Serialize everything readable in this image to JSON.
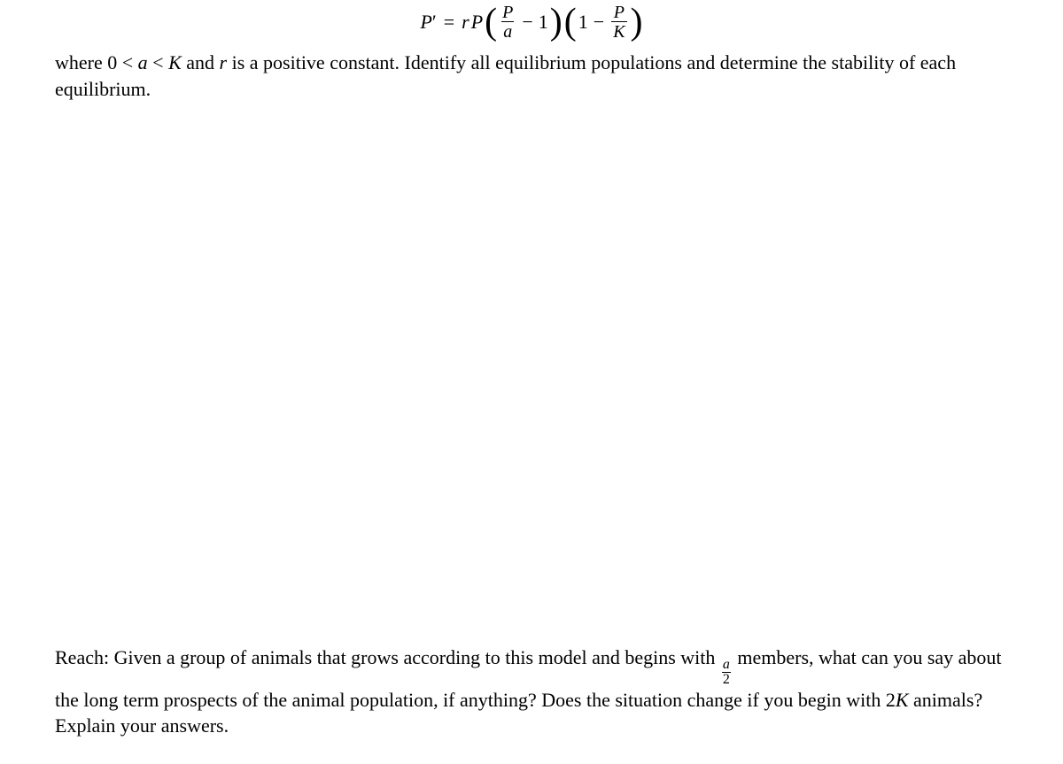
{
  "equation": {
    "var_P": "P",
    "prime": "′",
    "equals": "=",
    "var_r": "r",
    "var_P2": "P",
    "lparen1": "(",
    "frac1_num": "P",
    "frac1_den": "a",
    "minus1": "−",
    "one_a": "1",
    "rparen1": ")",
    "lparen2": "(",
    "one_b": "1",
    "minus2": "−",
    "frac2_num": "P",
    "frac2_den": "K",
    "rparen2": ")"
  },
  "para_top_parts": {
    "t1": "where 0 < ",
    "a": "a",
    "t2": " < ",
    "K": "K",
    "t3": " and ",
    "r": "r",
    "t4": " is a positive constant.  Identify all equilibrium populations and determine the stability of each equilibrium."
  },
  "para_bottom_parts": {
    "t1": "Reach: Given a group of animals that grows according to this model and begins with ",
    "fnum": "a",
    "fden": "2",
    "t2": " members, what can you say about the long term prospects of the animal population, if anything? Does the situation change if you begin with 2",
    "K": "K",
    "t3": " animals? Explain your answers."
  },
  "colors": {
    "text": "#000000",
    "background": "#ffffff"
  },
  "fontsizes": {
    "body": 22,
    "equation": 22
  }
}
